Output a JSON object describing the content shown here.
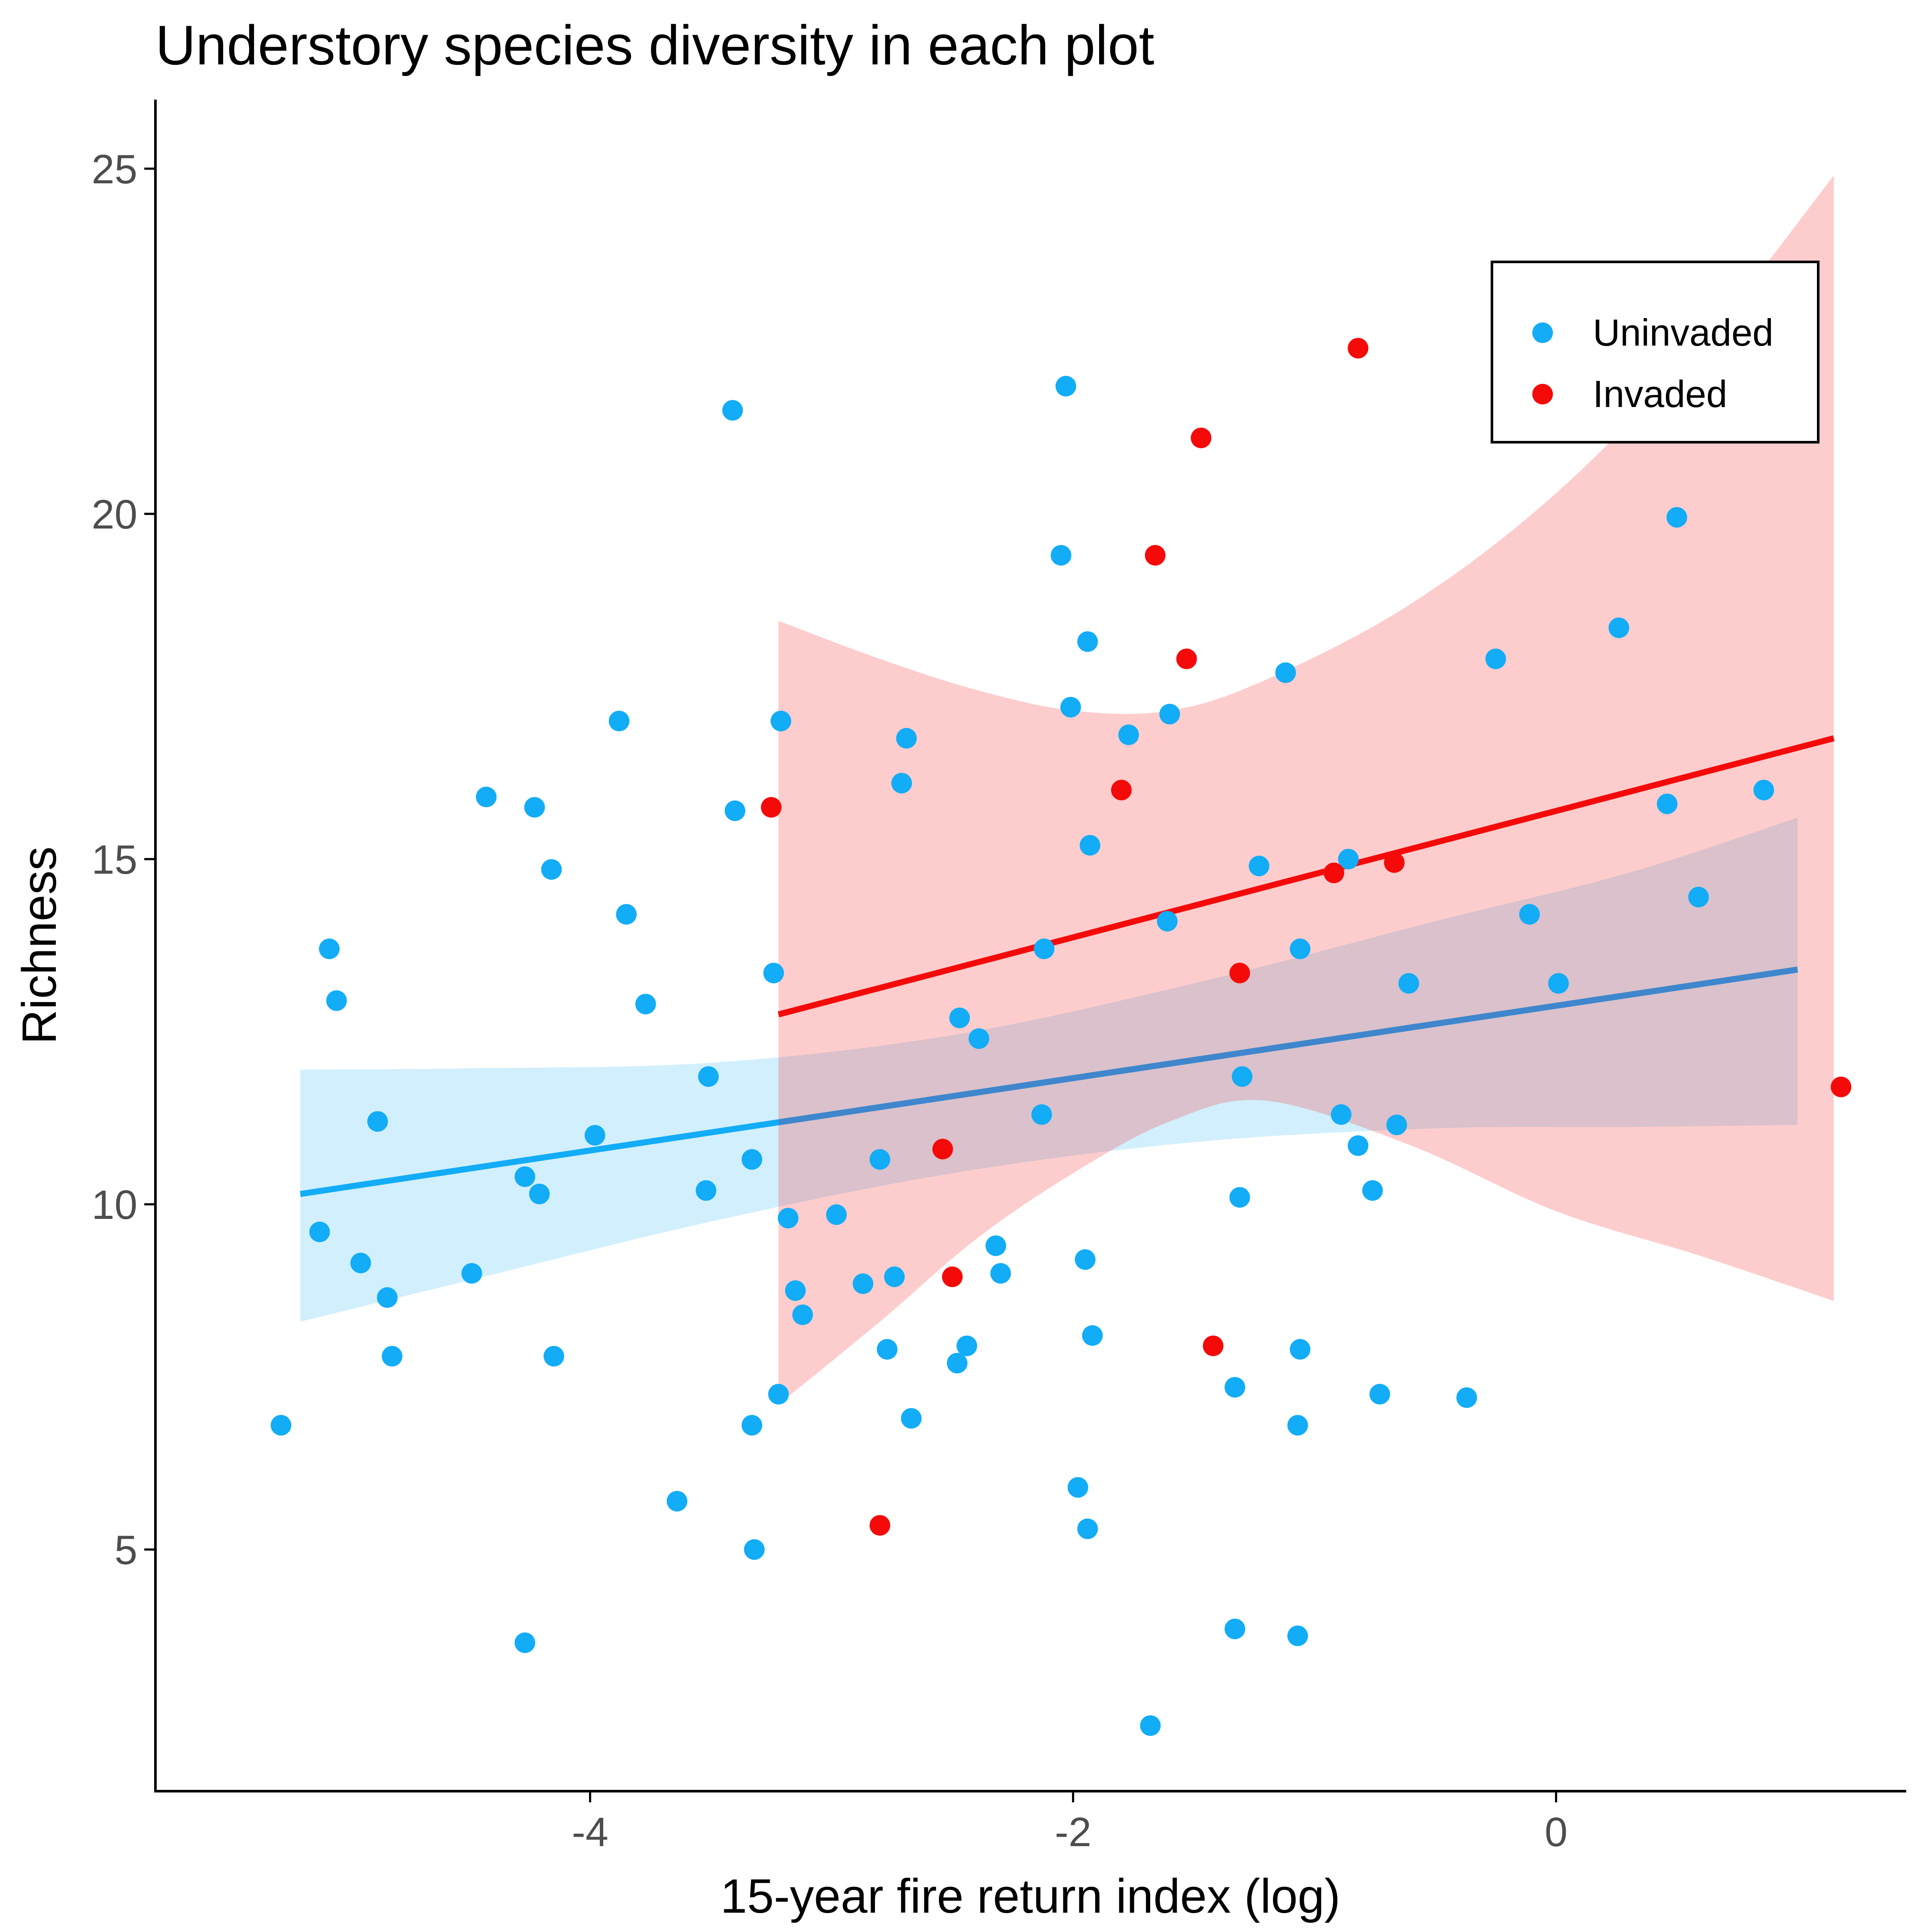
{
  "chart_data": {
    "type": "scatter",
    "title": "Understory species diversity in each plot",
    "xlabel": "15-year fire return index (log)",
    "ylabel": "Richness",
    "xlim": [
      -5.8,
      1.45
    ],
    "ylim": [
      1.5,
      26
    ],
    "x_ticks": [
      -4,
      -2,
      0
    ],
    "y_ticks": [
      5,
      10,
      15,
      20,
      25
    ],
    "grid": false,
    "legend_position": "top-right",
    "series": [
      {
        "name": "Uninvaded",
        "color": "#12acf7",
        "points": [
          [
            -5.28,
            6.8
          ],
          [
            -5.12,
            9.6
          ],
          [
            -5.08,
            13.7
          ],
          [
            -5.05,
            12.95
          ],
          [
            -4.95,
            9.15
          ],
          [
            -4.88,
            11.2
          ],
          [
            -4.84,
            8.65
          ],
          [
            -4.82,
            7.8
          ],
          [
            -4.49,
            9.0
          ],
          [
            -4.43,
            15.9
          ],
          [
            -4.27,
            10.4
          ],
          [
            -4.27,
            3.65
          ],
          [
            -4.23,
            15.75
          ],
          [
            -4.21,
            10.15
          ],
          [
            -4.16,
            14.85
          ],
          [
            -4.15,
            7.8
          ],
          [
            -3.98,
            11.0
          ],
          [
            -3.88,
            17.0
          ],
          [
            -3.85,
            14.2
          ],
          [
            -3.77,
            12.9
          ],
          [
            -3.64,
            5.7
          ],
          [
            -3.51,
            11.85
          ],
          [
            -3.52,
            10.2
          ],
          [
            -3.41,
            21.5
          ],
          [
            -3.4,
            15.7
          ],
          [
            -3.33,
            6.8
          ],
          [
            -3.33,
            10.65
          ],
          [
            -3.32,
            5.0
          ],
          [
            -3.24,
            13.35
          ],
          [
            -3.22,
            7.25
          ],
          [
            -3.21,
            17.0
          ],
          [
            -3.18,
            9.8
          ],
          [
            -3.15,
            8.75
          ],
          [
            -3.12,
            8.4
          ],
          [
            -2.98,
            9.85
          ],
          [
            -2.87,
            8.85
          ],
          [
            -2.8,
            10.65
          ],
          [
            -2.77,
            7.9
          ],
          [
            -2.74,
            8.95
          ],
          [
            -2.71,
            16.1
          ],
          [
            -2.69,
            16.75
          ],
          [
            -2.67,
            6.9
          ],
          [
            -2.48,
            7.7
          ],
          [
            -2.47,
            12.7
          ],
          [
            -2.44,
            7.95
          ],
          [
            -2.39,
            12.4
          ],
          [
            -2.32,
            9.4
          ],
          [
            -2.3,
            9.0
          ],
          [
            -2.13,
            11.3
          ],
          [
            -2.12,
            13.7
          ],
          [
            -2.05,
            19.4
          ],
          [
            -2.03,
            21.85
          ],
          [
            -2.01,
            17.2
          ],
          [
            -1.98,
            5.9
          ],
          [
            -1.95,
            9.2
          ],
          [
            -1.94,
            5.3
          ],
          [
            -1.94,
            18.15
          ],
          [
            -1.93,
            15.2
          ],
          [
            -1.92,
            8.1
          ],
          [
            -1.77,
            16.8
          ],
          [
            -1.68,
            2.45
          ],
          [
            -1.61,
            14.1
          ],
          [
            -1.6,
            17.1
          ],
          [
            -1.33,
            7.35
          ],
          [
            -1.33,
            3.85
          ],
          [
            -1.31,
            10.1
          ],
          [
            -1.3,
            11.85
          ],
          [
            -1.23,
            14.9
          ],
          [
            -1.12,
            17.7
          ],
          [
            -1.07,
            6.8
          ],
          [
            -1.07,
            3.75
          ],
          [
            -1.06,
            7.9
          ],
          [
            -1.06,
            13.7
          ],
          [
            -0.89,
            11.3
          ],
          [
            -0.86,
            15.0
          ],
          [
            -0.82,
            10.85
          ],
          [
            -0.76,
            10.2
          ],
          [
            -0.73,
            7.25
          ],
          [
            -0.66,
            11.15
          ],
          [
            -0.61,
            13.2
          ],
          [
            -0.37,
            7.2
          ],
          [
            -0.25,
            17.9
          ],
          [
            -0.11,
            14.2
          ],
          [
            0.01,
            13.2
          ],
          [
            0.26,
            18.35
          ],
          [
            0.46,
            15.8
          ],
          [
            0.5,
            19.95
          ],
          [
            0.59,
            14.45
          ],
          [
            0.86,
            16.0
          ]
        ],
        "fit": {
          "x0": -5.2,
          "y0": 10.15,
          "x1": 1.0,
          "y1": 13.4
        },
        "ci_upper": [
          [
            -5.2,
            11.95
          ],
          [
            -4.5,
            11.97
          ],
          [
            -3.5,
            12.05
          ],
          [
            -2.5,
            12.45
          ],
          [
            -1.5,
            13.2
          ],
          [
            -0.5,
            14.1
          ],
          [
            0.3,
            14.8
          ],
          [
            1.0,
            15.6
          ]
        ],
        "ci_lower": [
          [
            -5.2,
            8.3
          ],
          [
            -4.5,
            8.9
          ],
          [
            -3.5,
            9.75
          ],
          [
            -2.5,
            10.45
          ],
          [
            -1.5,
            10.9
          ],
          [
            -0.5,
            11.1
          ],
          [
            0.3,
            11.12
          ],
          [
            1.0,
            11.15
          ]
        ]
      },
      {
        "name": "Invaded",
        "color": "#f50a0a",
        "points": [
          [
            -3.25,
            15.75
          ],
          [
            -2.8,
            5.35
          ],
          [
            -2.54,
            10.8
          ],
          [
            -2.5,
            8.95
          ],
          [
            -1.8,
            16.0
          ],
          [
            -1.66,
            19.4
          ],
          [
            -1.53,
            17.9
          ],
          [
            -1.47,
            21.1
          ],
          [
            -1.42,
            7.95
          ],
          [
            -1.31,
            13.35
          ],
          [
            -0.92,
            14.8
          ],
          [
            -0.82,
            22.4
          ],
          [
            -0.67,
            14.95
          ],
          [
            1.18,
            11.7
          ]
        ],
        "fit": {
          "x0": -3.22,
          "y0": 12.75,
          "x1": 1.15,
          "y1": 16.75
        },
        "ci_upper": [
          [
            -3.22,
            18.45
          ],
          [
            -2.8,
            17.9
          ],
          [
            -2.4,
            17.45
          ],
          [
            -2.0,
            17.15
          ],
          [
            -1.6,
            17.15
          ],
          [
            -1.2,
            17.6
          ],
          [
            -0.6,
            18.7
          ],
          [
            0.0,
            20.3
          ],
          [
            0.6,
            22.45
          ],
          [
            1.15,
            24.9
          ]
        ],
        "ci_lower": [
          [
            -3.22,
            7.1
          ],
          [
            -2.8,
            8.3
          ],
          [
            -2.4,
            9.5
          ],
          [
            -2.0,
            10.45
          ],
          [
            -1.6,
            11.2
          ],
          [
            -1.2,
            11.5
          ],
          [
            -0.6,
            10.85
          ],
          [
            0.0,
            9.9
          ],
          [
            0.6,
            9.25
          ],
          [
            1.15,
            8.6
          ]
        ]
      }
    ]
  }
}
